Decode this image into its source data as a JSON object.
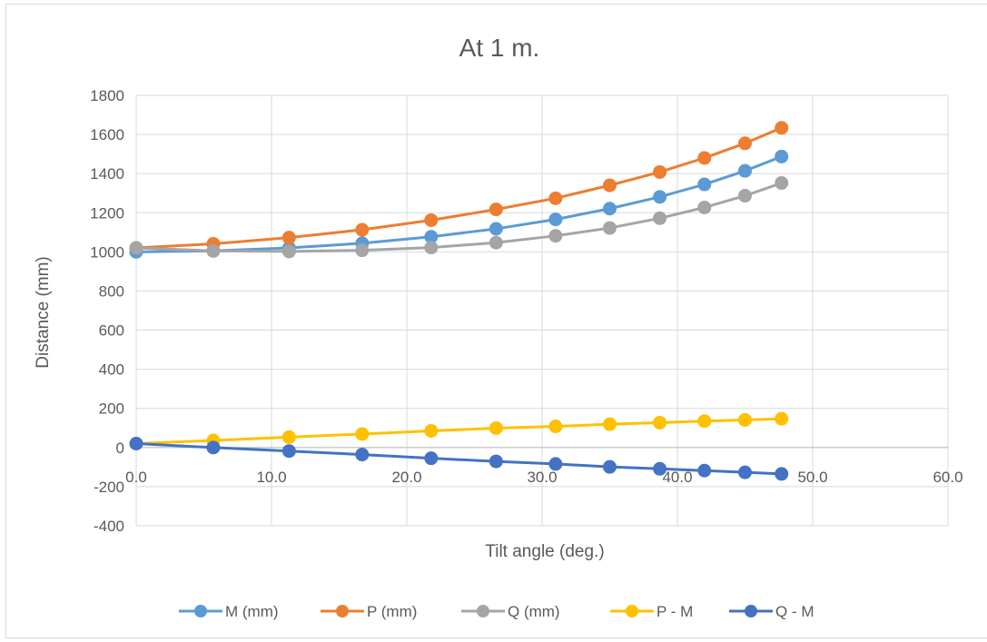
{
  "chart_data": {
    "type": "scatter",
    "title": "At 1 m.",
    "xlabel": "Tilt angle (deg.)",
    "ylabel": "Distance (mm)",
    "xlim": [
      0,
      60
    ],
    "ylim": [
      -400,
      1800
    ],
    "x_ticks": [
      "0.0",
      "10.0",
      "20.0",
      "30.0",
      "40.0",
      "50.0",
      "60.0"
    ],
    "y_ticks": [
      "-400",
      "-200",
      "0",
      "200",
      "400",
      "600",
      "800",
      "1000",
      "1200",
      "1400",
      "1600",
      "1800"
    ],
    "grid": true,
    "legend_position": "bottom",
    "x": [
      0.0,
      5.7,
      11.3,
      16.7,
      21.8,
      26.6,
      31.0,
      35.0,
      38.7,
      42.0,
      45.0,
      47.7
    ],
    "series": [
      {
        "name": "M (mm)",
        "color": "#5b9bd5",
        "values": [
          1000,
          1005,
          1020,
          1044,
          1077,
          1118,
          1166,
          1221,
          1281,
          1345,
          1414,
          1487
        ]
      },
      {
        "name": "P (mm)",
        "color": "#ed7d31",
        "values": [
          1020,
          1041,
          1073,
          1113,
          1162,
          1217,
          1274,
          1340,
          1408,
          1480,
          1555,
          1634
        ]
      },
      {
        "name": "Q (mm)",
        "color": "#a5a5a5",
        "values": [
          1020,
          1005,
          1002,
          1008,
          1022,
          1047,
          1082,
          1122,
          1172,
          1227,
          1287,
          1352
        ]
      },
      {
        "name": "P - M",
        "color": "#ffc000",
        "values": [
          20,
          36,
          53,
          69,
          85,
          99,
          108,
          119,
          127,
          135,
          141,
          147
        ]
      },
      {
        "name": "Q - M",
        "color": "#4472c4",
        "values": [
          20,
          0,
          -18,
          -36,
          -55,
          -71,
          -84,
          -99,
          -109,
          -118,
          -127,
          -135
        ]
      }
    ]
  }
}
